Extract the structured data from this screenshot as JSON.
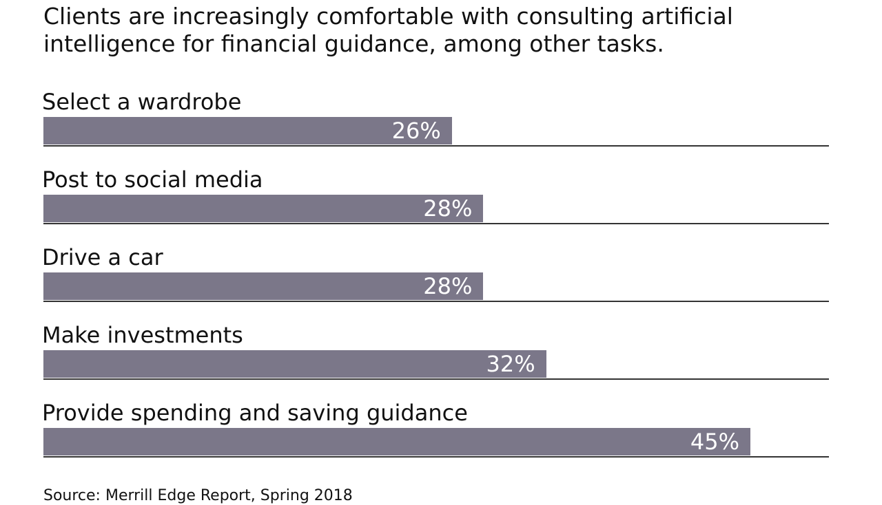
{
  "chart_data": {
    "type": "bar",
    "orientation": "horizontal",
    "title": "Clients are increasingly comfortable with consulting artificial intelligence for financial guidance, among other tasks.",
    "categories": [
      "Select a wardrobe",
      "Post to social media",
      "Drive a car",
      "Make investments",
      "Provide spending and saving guidance"
    ],
    "values": [
      26,
      28,
      28,
      32,
      45
    ],
    "value_labels": [
      "26%",
      "28%",
      "28%",
      "32%",
      "45%"
    ],
    "xlim": [
      0,
      50
    ],
    "bar_color": "#7b7789",
    "grid": false,
    "source": "Source: Merrill Edge Report, Spring 2018"
  }
}
